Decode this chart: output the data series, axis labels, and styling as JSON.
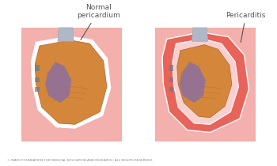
{
  "title_left": "Normal\npericardium",
  "title_right": "Pericarditis",
  "footer": "© MAYO FOUNDATION FOR MEDICAL EDUCATION AND RESEARCH. ALL RIGHTS RESERVED.",
  "bg_color": "#ffffff",
  "colors": {
    "outer_tissue": "#e8635a",
    "pericardium_normal": "#f5e8e8",
    "pericardium_inflamed": "#e8635a",
    "pericardium_inflamed_inner": "#f9d0d0",
    "heart_red": "#c0392b",
    "heart_orange": "#d4873a",
    "heart_muscle": "#b85c2a",
    "ventricle_purple": "#8b6fa0",
    "aorta": "#b0b8c8",
    "dark_vessel": "#6a7a8a",
    "text_color": "#555555",
    "arrow_color": "#555555"
  },
  "figsize": [
    3.5,
    2.1
  ],
  "dpi": 100
}
